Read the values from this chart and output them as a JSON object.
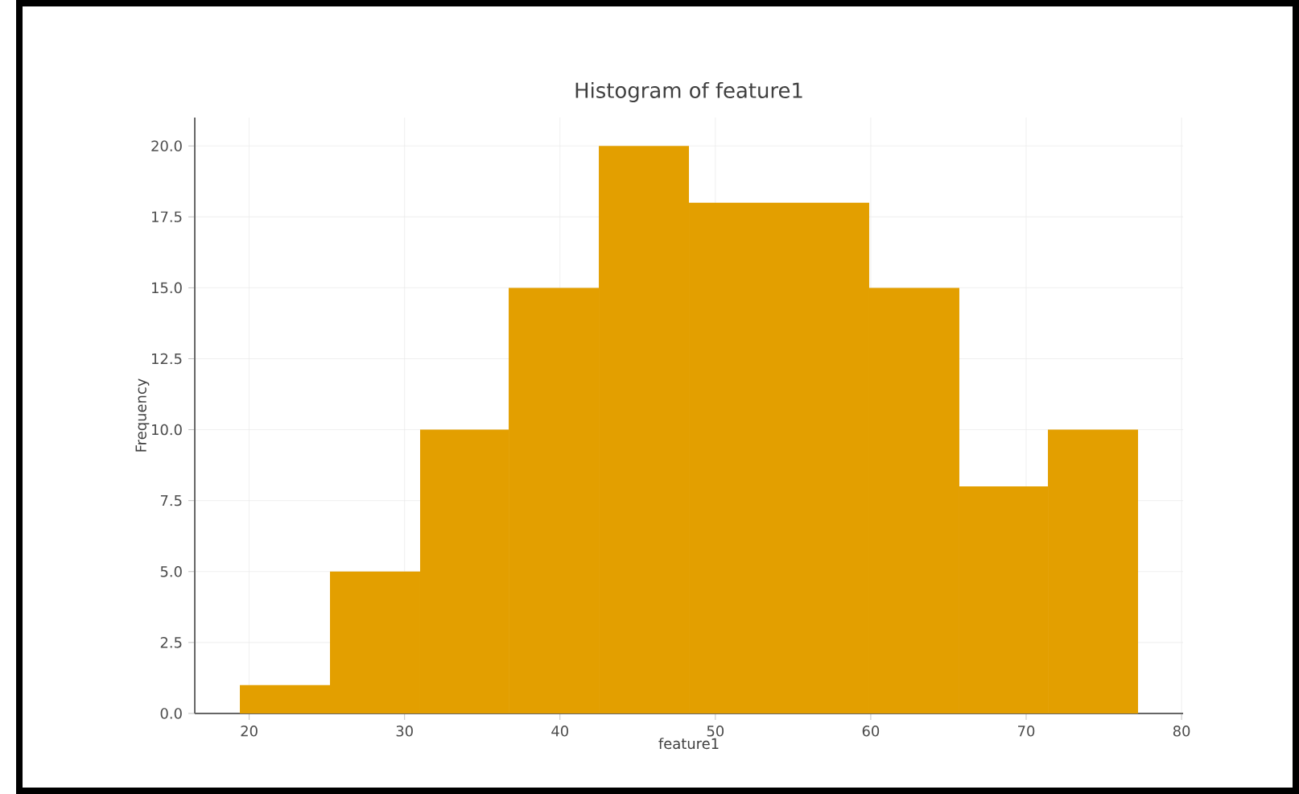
{
  "chart_data": {
    "type": "histogram",
    "title": "Histogram of feature1",
    "xlabel": "feature1",
    "ylabel": "Frequency",
    "bins": [
      19.4,
      25.2,
      31.0,
      36.7,
      42.5,
      48.3,
      54.1,
      59.9,
      65.7,
      71.4,
      77.2
    ],
    "values": [
      1,
      5,
      10,
      15,
      20,
      18,
      18,
      15,
      8,
      10
    ],
    "color": "#e39f00",
    "xlim": [
      16.5,
      80.1
    ],
    "xticks": [
      20,
      30,
      40,
      50,
      60,
      70,
      80
    ],
    "ylim": [
      0,
      21
    ],
    "yticks": [
      {
        "value": 0,
        "label": "0.0"
      },
      {
        "value": 2.5,
        "label": "2.5"
      },
      {
        "value": 5,
        "label": "5.0"
      },
      {
        "value": 7.5,
        "label": "7.5"
      },
      {
        "value": 10,
        "label": "10.0"
      },
      {
        "value": 12.5,
        "label": "12.5"
      },
      {
        "value": 15,
        "label": "15.0"
      },
      {
        "value": 17.5,
        "label": "17.5"
      },
      {
        "value": 20,
        "label": "20.0"
      }
    ],
    "grid": true
  }
}
